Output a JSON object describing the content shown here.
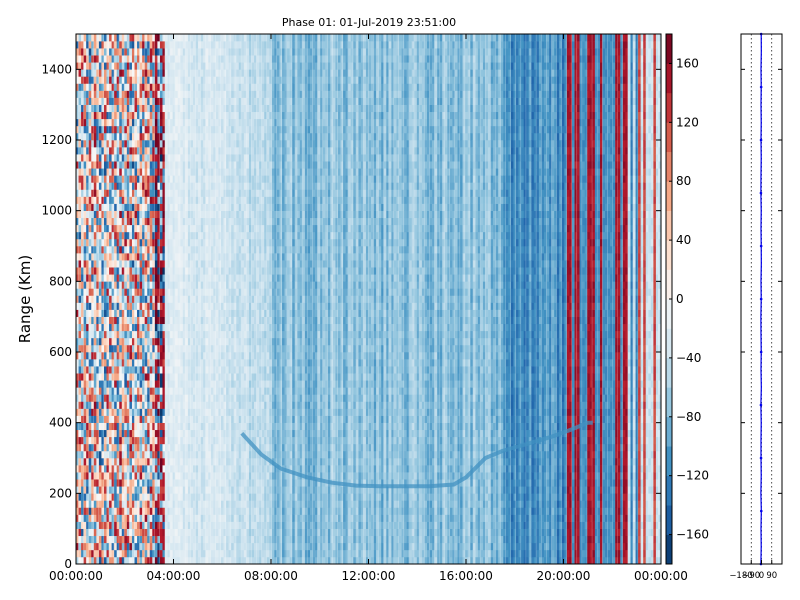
{
  "chart_data": [
    {
      "type": "heatmap",
      "title": "Phase 01: 01-Jul-2019 23:51:00",
      "xlabel": "",
      "ylabel": "Range (Km)",
      "x_range": [
        "00:00:00",
        "24:00:00"
      ],
      "x_ticks": [
        "00:00:00",
        "04:00:00",
        "08:00:00",
        "12:00:00",
        "16:00:00",
        "20:00:00",
        "00:00:00"
      ],
      "x_tick_hours": [
        0,
        4,
        8,
        12,
        16,
        20,
        24
      ],
      "ylim": [
        0,
        1500
      ],
      "y_ticks": [
        0,
        200,
        400,
        600,
        800,
        1000,
        1200,
        1400
      ],
      "colormap": "RdBu_r",
      "colorbar": {
        "range": [
          -180,
          180
        ],
        "ticks": [
          -160,
          -120,
          -80,
          -40,
          0,
          40,
          80,
          120,
          160
        ],
        "tick_labels": [
          "−160",
          "−120",
          "−80",
          "−40",
          "0",
          "40",
          "80",
          "120",
          "160"
        ]
      },
      "regions": [
        {
          "hours": [
            0,
            3.2
          ],
          "description_value_range": [
            -180,
            180
          ],
          "pattern": "random"
        },
        {
          "hours": [
            3.2,
            3.6
          ],
          "value_mean": 120,
          "pattern": "random-red"
        },
        {
          "hours": [
            3.6,
            8.0
          ],
          "value_mean": -40,
          "pattern": "light-blue"
        },
        {
          "hours": [
            8.0,
            17.4
          ],
          "value_mean": -90,
          "pattern": "medium-blue"
        },
        {
          "hours": [
            17.4,
            20.0
          ],
          "value_mean": -120,
          "pattern": "strong-blue"
        },
        {
          "hours": [
            20.0,
            22.6
          ],
          "value_mean": 140,
          "pattern": "red-stripes"
        },
        {
          "hours": [
            22.6,
            24.0
          ],
          "value_mean": 0,
          "pattern": "mixed"
        }
      ],
      "trace": {
        "hours": [
          6.8,
          7.6,
          8.4,
          9.5,
          10.5,
          11.5,
          12.5,
          13.5,
          14.5,
          15.5,
          16.0,
          16.8,
          17.5,
          18.5,
          19.5,
          20.3,
          21.0,
          21.2
        ],
        "range_km": [
          370,
          310,
          270,
          245,
          230,
          222,
          220,
          220,
          220,
          225,
          245,
          300,
          320,
          340,
          360,
          380,
          400,
          400
        ]
      }
    },
    {
      "type": "line",
      "title": "",
      "xlabel": "",
      "ylabel": "",
      "xlim": [
        -180,
        180
      ],
      "ylim": [
        0,
        1500
      ],
      "x_ticks": [
        -180,
        -90,
        0,
        90
      ],
      "x_tick_labels": [
        "−180",
        "−90",
        "0",
        "90"
      ],
      "grid_vertical": true,
      "series": [
        {
          "values_x": [
            -5,
            -3,
            -4,
            -2,
            -5,
            -3,
            -4,
            -4,
            -3,
            -5,
            -2,
            -4,
            -3,
            -4,
            -5,
            -3,
            -4,
            -2,
            -3,
            -4,
            -3,
            -5,
            -4,
            -3,
            -4,
            -3,
            -4,
            -3,
            -4,
            -2,
            -3
          ],
          "values_y": [
            0,
            50,
            100,
            150,
            200,
            250,
            300,
            350,
            400,
            450,
            500,
            550,
            600,
            650,
            700,
            750,
            800,
            850,
            900,
            950,
            1000,
            1050,
            1100,
            1150,
            1200,
            1250,
            1300,
            1350,
            1400,
            1450,
            1500
          ]
        }
      ]
    }
  ]
}
